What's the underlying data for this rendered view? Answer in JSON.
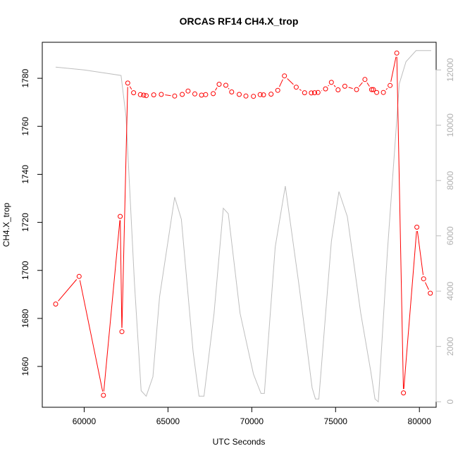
{
  "chart_data": {
    "type": "line",
    "title": "ORCAS RF14 CH4.X_trop",
    "xlabel": "UTC Seconds",
    "ylabel": "CH4.X_trop",
    "xlim": [
      57500,
      81000
    ],
    "ylim": [
      1643,
      1795
    ],
    "y2lim": [
      -200,
      13000
    ],
    "x_ticks": [
      60000,
      65000,
      70000,
      75000,
      80000
    ],
    "y_ticks": [
      1660,
      1680,
      1700,
      1720,
      1740,
      1760,
      1780
    ],
    "y2_ticks": [
      0,
      2000,
      4000,
      6000,
      8000,
      10000,
      12000
    ],
    "colors": {
      "ch4": "#ff0000",
      "altitude": "#bebebe",
      "frame": "#000000"
    },
    "series": [
      {
        "values": [
          [
            58300,
            1686
          ],
          [
            59700,
            1697.5
          ],
          [
            61150,
            1648
          ],
          [
            62150,
            1722.5
          ],
          [
            62250,
            1674.5
          ],
          [
            62600,
            1778
          ],
          [
            62950,
            1774
          ],
          [
            63350,
            1773.2
          ],
          [
            63550,
            1773
          ],
          [
            63700,
            1772.8
          ],
          [
            64150,
            1773.1
          ],
          [
            64600,
            1773.3
          ],
          [
            65400,
            1772.6
          ],
          [
            65850,
            1773.3
          ],
          [
            66200,
            1774.7
          ],
          [
            66600,
            1773.5
          ],
          [
            67000,
            1773
          ],
          [
            67250,
            1773.2
          ],
          [
            67700,
            1773.6
          ],
          [
            68050,
            1777.5
          ],
          [
            68450,
            1777.1
          ],
          [
            68800,
            1774.3
          ],
          [
            69250,
            1773.3
          ],
          [
            69650,
            1772.6
          ],
          [
            70100,
            1772.5
          ],
          [
            70500,
            1773.2
          ],
          [
            70700,
            1773.1
          ],
          [
            71150,
            1773.4
          ],
          [
            71550,
            1775
          ],
          [
            71950,
            1781
          ],
          [
            72650,
            1776.3
          ],
          [
            73150,
            1774
          ],
          [
            73550,
            1773.9
          ],
          [
            73750,
            1774
          ],
          [
            73950,
            1774.1
          ],
          [
            74400,
            1775.6
          ],
          [
            74750,
            1778.3
          ],
          [
            75150,
            1775.2
          ],
          [
            75550,
            1776.7
          ],
          [
            76250,
            1775.3
          ],
          [
            76750,
            1779.5
          ],
          [
            77150,
            1775.3
          ],
          [
            77250,
            1775.3
          ],
          [
            77450,
            1774.1
          ],
          [
            77850,
            1774.1
          ],
          [
            78250,
            1777
          ],
          [
            78650,
            1790.5
          ],
          [
            79050,
            1649
          ],
          [
            79850,
            1718
          ],
          [
            80250,
            1696.5
          ],
          [
            80650,
            1690.5
          ]
        ]
      },
      {
        "axis": "right",
        "values": [
          [
            58300,
            12100
          ],
          [
            60000,
            12000
          ],
          [
            62200,
            11800
          ],
          [
            62500,
            10300
          ],
          [
            63000,
            4300
          ],
          [
            63400,
            400
          ],
          [
            63700,
            200
          ],
          [
            64100,
            900
          ],
          [
            64500,
            3800
          ],
          [
            65400,
            7400
          ],
          [
            65800,
            6600
          ],
          [
            66500,
            1800
          ],
          [
            66850,
            200
          ],
          [
            67150,
            200
          ],
          [
            67750,
            3200
          ],
          [
            68300,
            7000
          ],
          [
            68600,
            6800
          ],
          [
            69300,
            3200
          ],
          [
            70100,
            1000
          ],
          [
            70550,
            300
          ],
          [
            70750,
            300
          ],
          [
            71400,
            5600
          ],
          [
            72000,
            7800
          ],
          [
            72800,
            4300
          ],
          [
            73600,
            500
          ],
          [
            73800,
            100
          ],
          [
            74000,
            100
          ],
          [
            74750,
            5800
          ],
          [
            75200,
            7600
          ],
          [
            75700,
            6700
          ],
          [
            76500,
            3200
          ],
          [
            77100,
            1100
          ],
          [
            77350,
            100
          ],
          [
            77550,
            0
          ],
          [
            78100,
            5500
          ],
          [
            78800,
            11500
          ],
          [
            79200,
            12300
          ],
          [
            79800,
            12700
          ],
          [
            80700,
            12700
          ]
        ]
      }
    ]
  }
}
